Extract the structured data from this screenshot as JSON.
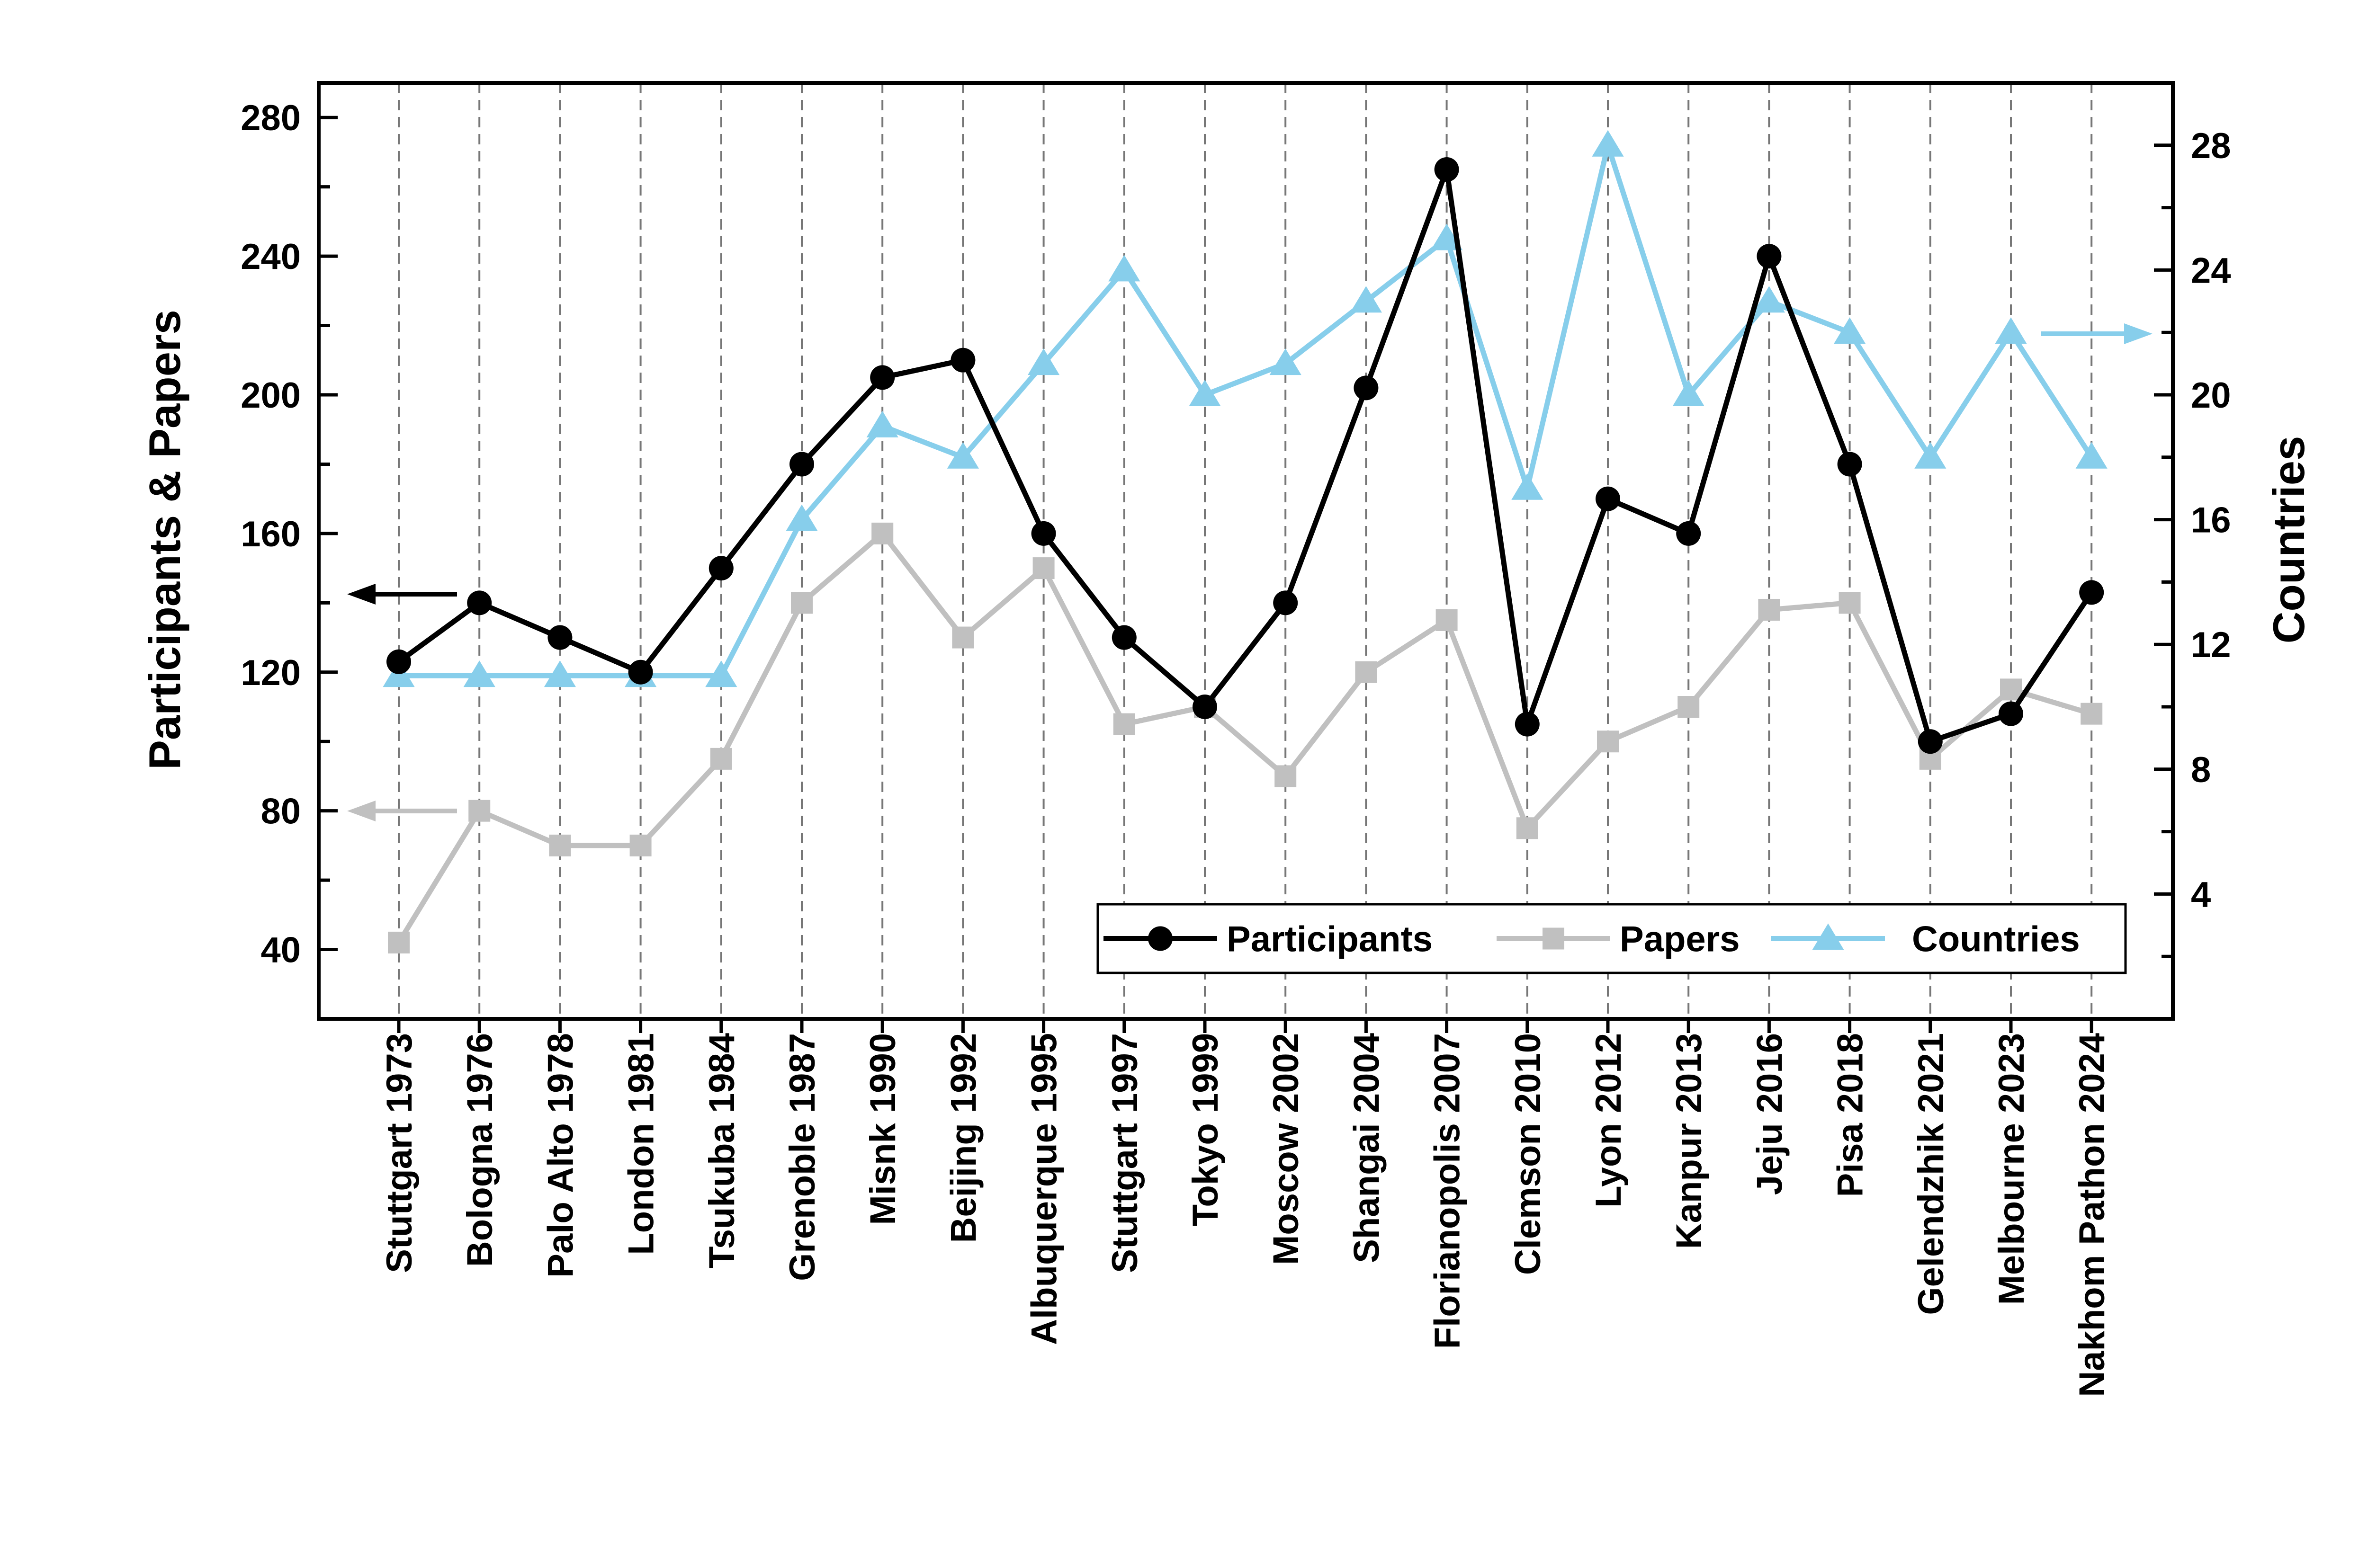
{
  "chart_data": {
    "type": "line",
    "categories": [
      "Stuttgart 1973",
      "Bologna 1976",
      "Palo Alto 1978",
      "London 1981",
      "Tsukuba 1984",
      "Grenoble 1987",
      "Misnk 1990",
      "Beijing 1992",
      "Albuquerque 1995",
      "Stuttgart 1997",
      "Tokyo 1999",
      "Moscow 2002",
      "Shangai 2004",
      "Florianopolis 2007",
      "Clemson 2010",
      "Lyon 2012",
      "Kanpur 2013",
      "Jeju 2016",
      "Pisa 2018",
      "Gelendzhik 2021",
      "Melbourne 2023",
      "Nakhom Pathon 2024"
    ],
    "ylabel": "Participants & Papers",
    "y2label": "Countries",
    "ylim": [
      20,
      290
    ],
    "y2lim": [
      0,
      30
    ],
    "yticks": [
      "40",
      "80",
      "120",
      "160",
      "200",
      "240",
      "280"
    ],
    "y2ticks": [
      "4",
      "8",
      "12",
      "16",
      "20",
      "24",
      "28"
    ],
    "grid": "vertical dashed lines at categories",
    "legend_position": "bottom-right",
    "series": [
      {
        "name": "Participants",
        "axis": "left",
        "color": "#000000",
        "marker": "circle",
        "values": [
          123,
          140,
          130,
          120,
          150,
          180,
          205,
          210,
          160,
          130,
          110,
          140,
          202,
          265,
          105,
          170,
          160,
          240,
          180,
          100,
          108,
          143
        ]
      },
      {
        "name": "Papers",
        "axis": "left",
        "color": "#c0c0c0",
        "marker": "square",
        "values": [
          42,
          80,
          70,
          70,
          95,
          140,
          160,
          130,
          150,
          105,
          110,
          90,
          120,
          135,
          75,
          100,
          110,
          138,
          140,
          95,
          115,
          108
        ]
      },
      {
        "name": "Countries",
        "axis": "right",
        "color": "#87ceeb",
        "marker": "triangle",
        "values": [
          11,
          11,
          11,
          11,
          11,
          16,
          19,
          18,
          21,
          24,
          20,
          21,
          23,
          25,
          17,
          28,
          20,
          23,
          22,
          18,
          22,
          18
        ]
      }
    ]
  }
}
